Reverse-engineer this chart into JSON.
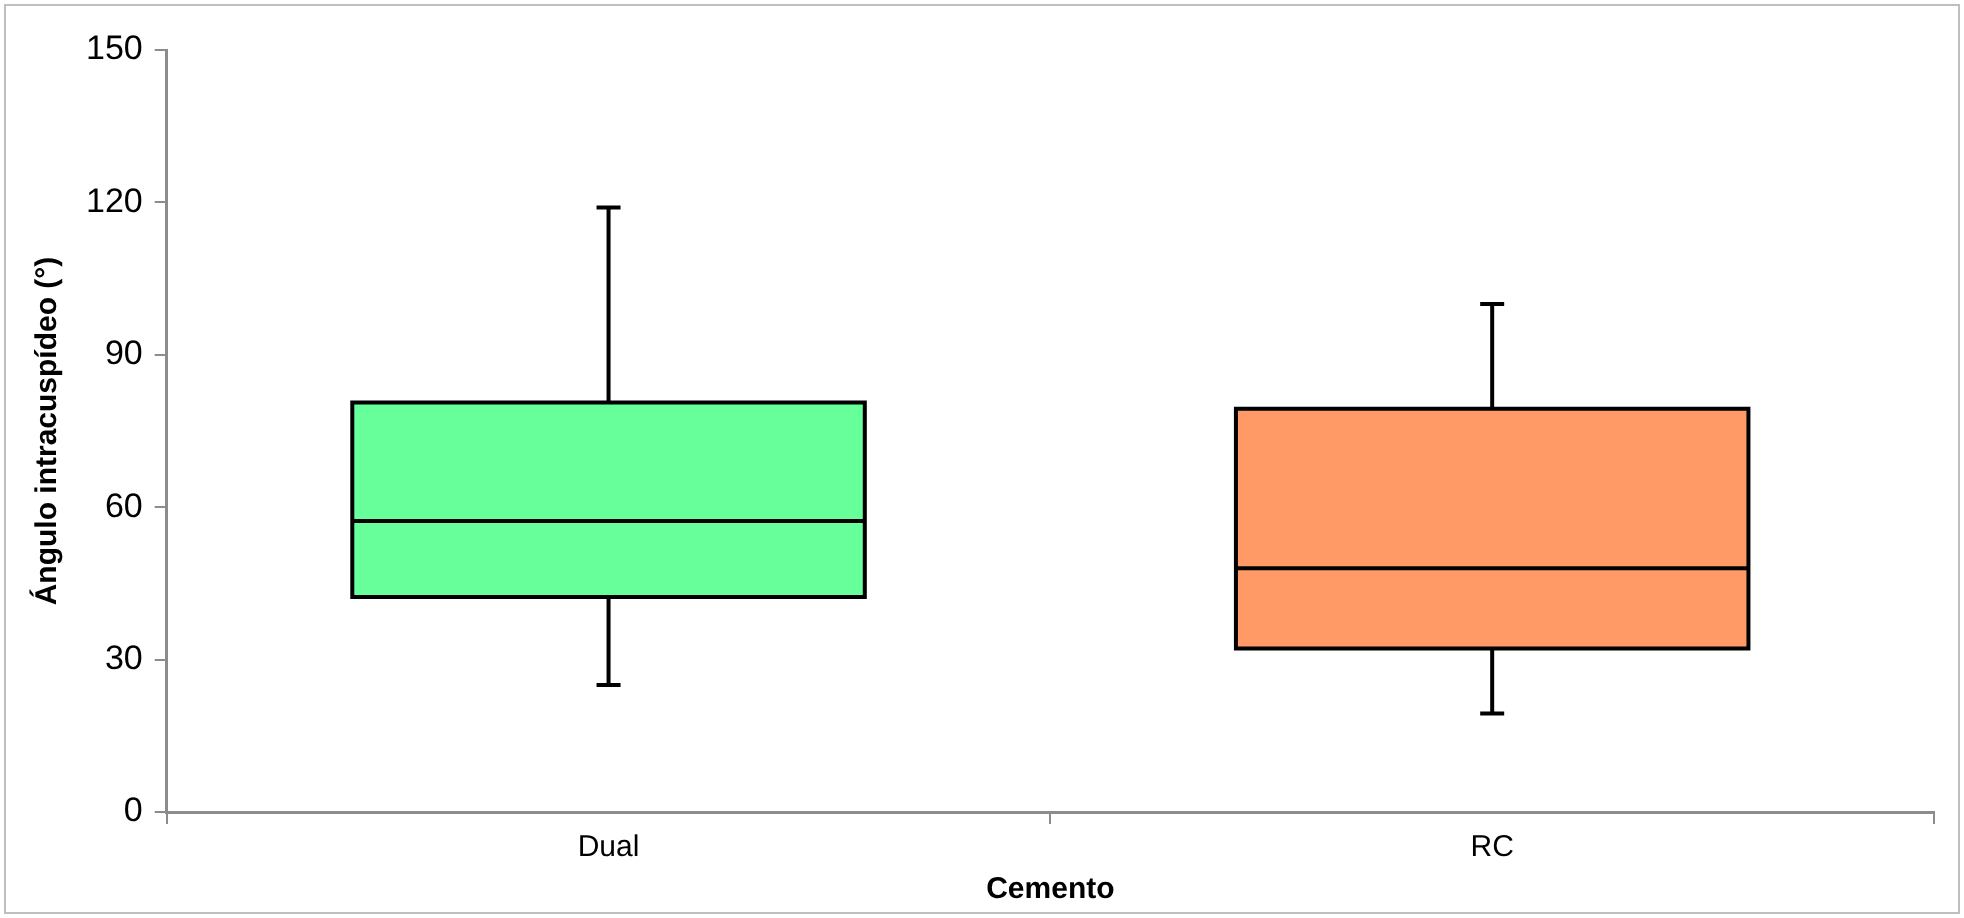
{
  "chart_data": {
    "type": "box",
    "xlabel": "Cemento",
    "ylabel": "Ángulo intracuspídeo (°)",
    "categories": [
      "Dual",
      "RC"
    ],
    "boxes": [
      {
        "low": 25,
        "q1": 42.3,
        "median": 57.3,
        "q3": 80.6,
        "high": 119
      },
      {
        "low": 19.4,
        "q1": 32.2,
        "median": 48,
        "q3": 79.4,
        "high": 100
      }
    ],
    "colors": [
      "#66ff99",
      "#ff9966"
    ],
    "ylim": [
      0,
      150
    ],
    "yticks": [
      0,
      30,
      60,
      90,
      120,
      150
    ],
    "grid": false,
    "legend": false
  }
}
